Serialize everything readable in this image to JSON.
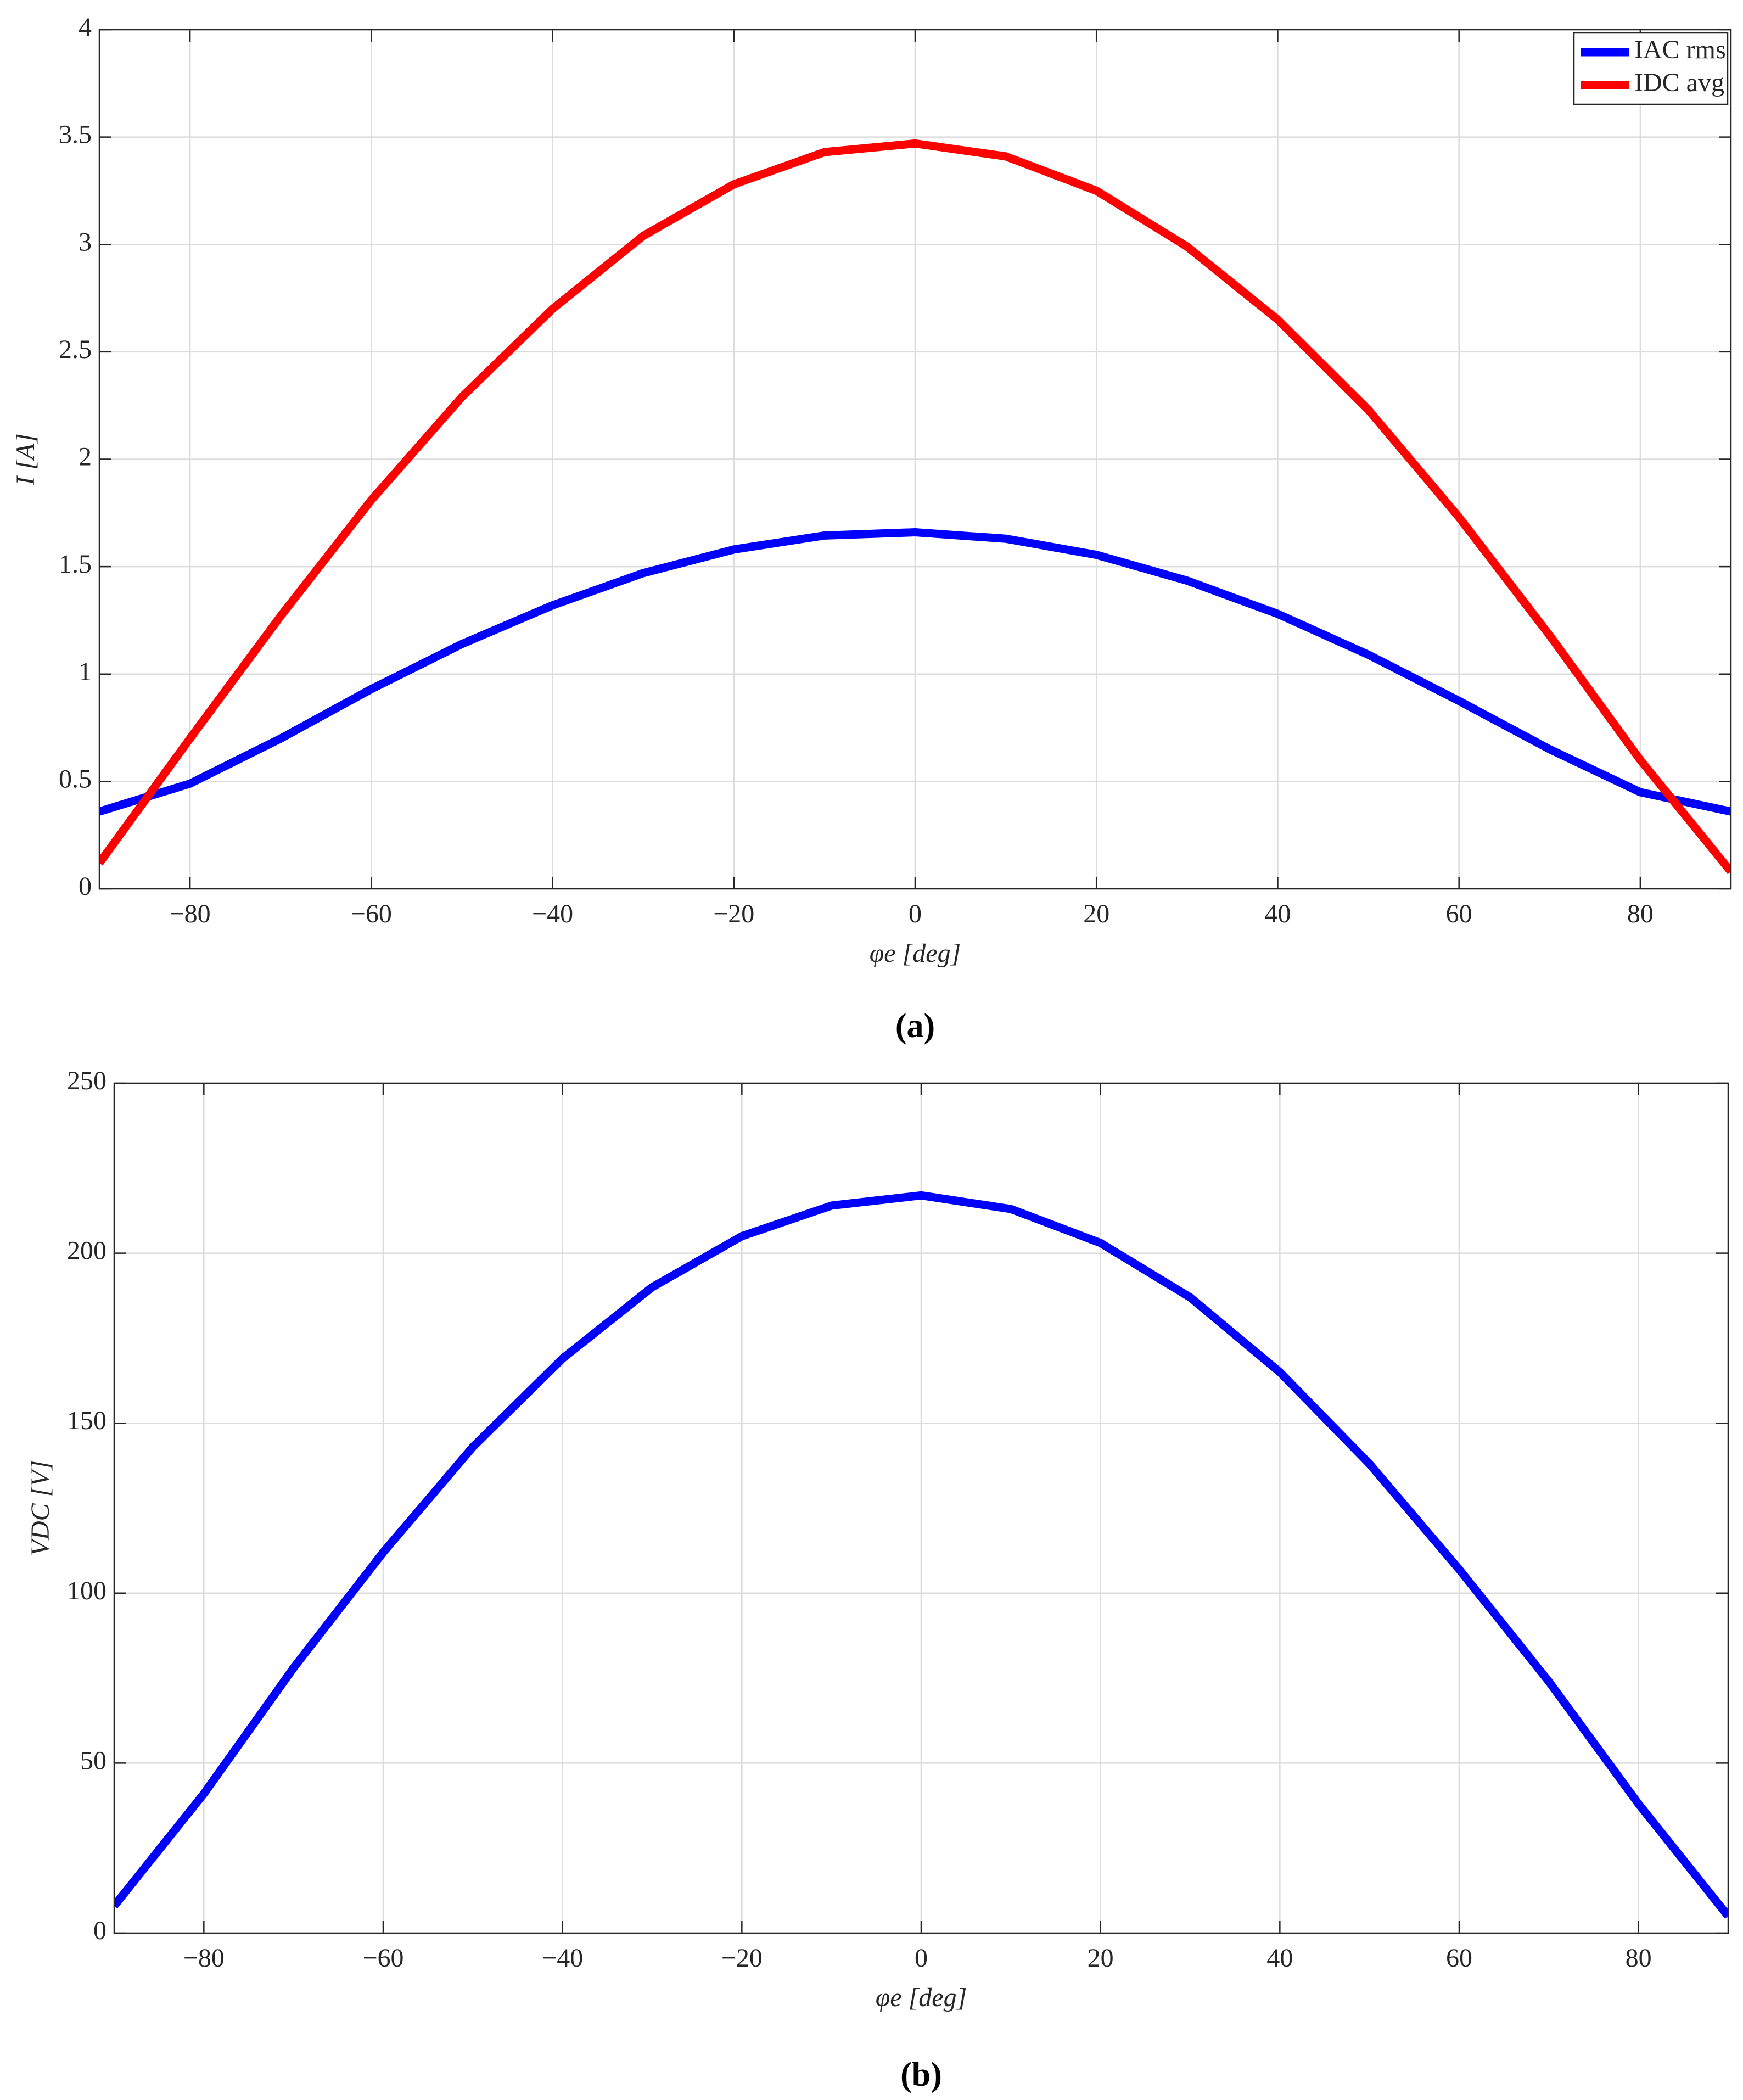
{
  "chart_data": [
    {
      "type": "line",
      "caption": "(a)",
      "xlabel": "φe [deg]",
      "ylabel": "I [A]",
      "x": [
        -90,
        -80,
        -70,
        -60,
        -50,
        -40,
        -30,
        -20,
        -10,
        0,
        10,
        20,
        30,
        40,
        50,
        60,
        70,
        80,
        90
      ],
      "series": [
        {
          "name": "IAC rms",
          "color": "#0000ff",
          "values": [
            0.36,
            0.49,
            0.7,
            0.93,
            1.14,
            1.32,
            1.47,
            1.58,
            1.645,
            1.66,
            1.63,
            1.555,
            1.435,
            1.28,
            1.09,
            0.875,
            0.65,
            0.45,
            0.36
          ]
        },
        {
          "name": "IDC avg",
          "color": "#ff0000",
          "values": [
            0.12,
            0.7,
            1.27,
            1.81,
            2.29,
            2.7,
            3.04,
            3.28,
            3.43,
            3.47,
            3.41,
            3.25,
            2.99,
            2.65,
            2.23,
            1.73,
            1.18,
            0.6,
            0.08
          ]
        }
      ],
      "xlim": [
        -90,
        90
      ],
      "xticks": [
        {
          "value": -80,
          "label": "−80"
        },
        {
          "value": -60,
          "label": "−60"
        },
        {
          "value": -40,
          "label": "−40"
        },
        {
          "value": -20,
          "label": "−20"
        },
        0,
        20,
        40,
        60,
        80
      ],
      "ylim": [
        0,
        4
      ],
      "yticks": [
        0,
        0.5,
        1,
        1.5,
        2,
        2.5,
        3,
        3.5,
        4
      ],
      "grid": true,
      "legend": "upper right"
    },
    {
      "type": "line",
      "caption": "(b)",
      "xlabel": "φe [deg]",
      "ylabel": "VDC [V]",
      "x": [
        -90,
        -80,
        -70,
        -60,
        -50,
        -40,
        -30,
        -20,
        -10,
        0,
        10,
        20,
        30,
        40,
        50,
        60,
        70,
        80,
        90
      ],
      "series": [
        {
          "color": "#0000ff",
          "values": [
            8,
            41,
            78,
            112,
            143,
            169,
            190,
            205,
            214,
            217,
            213,
            203,
            187,
            165,
            138,
            107,
            74,
            38,
            5
          ]
        }
      ],
      "xlim": [
        -90,
        90
      ],
      "xticks": [
        {
          "value": -80,
          "label": "−80"
        },
        {
          "value": -60,
          "label": "−60"
        },
        {
          "value": -40,
          "label": "−40"
        },
        {
          "value": -20,
          "label": "−20"
        },
        0,
        20,
        40,
        60,
        80
      ],
      "ylim": [
        0,
        250
      ],
      "yticks": [
        0,
        50,
        100,
        150,
        200,
        250
      ],
      "grid": true
    }
  ]
}
